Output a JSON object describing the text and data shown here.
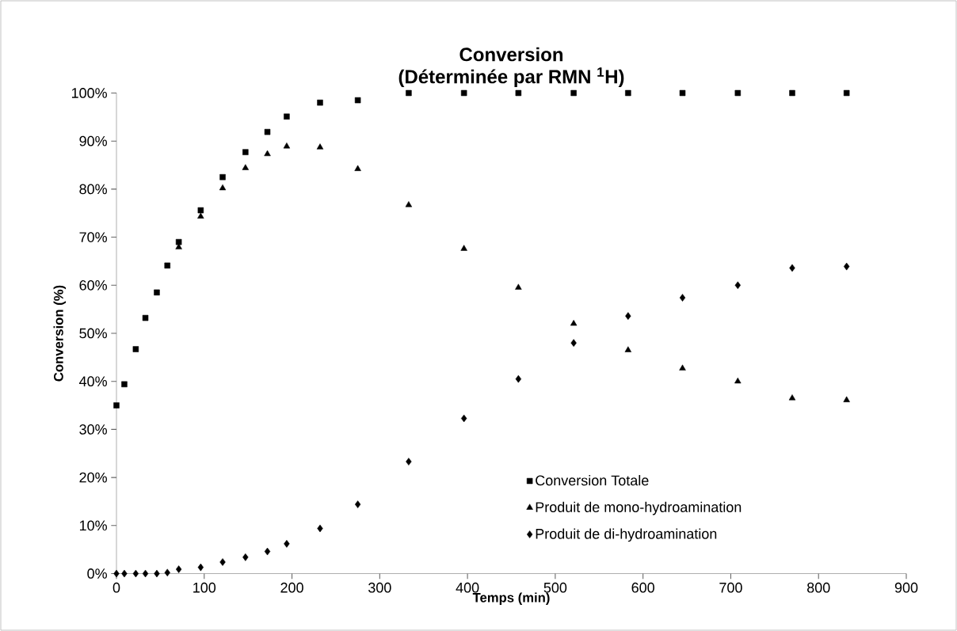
{
  "chart_data": {
    "type": "scatter",
    "title": "Conversion",
    "subtitle": "(Déterminée par RMN $^{1}$H)",
    "xlabel": "Temps (min)",
    "ylabel": "Conversion (%)",
    "x": [
      0,
      9,
      22,
      33,
      46,
      58,
      71,
      96,
      121,
      147,
      172,
      194,
      232,
      275,
      333,
      396,
      458,
      521,
      583,
      645,
      708,
      770,
      832
    ],
    "series": [
      {
        "name": "Conversion Totale",
        "color": "#000000",
        "marker": "square",
        "values": [
          35.0,
          39.4,
          46.7,
          53.2,
          58.5,
          64.1,
          69.0,
          75.6,
          82.5,
          87.7,
          91.9,
          95.1,
          98.0,
          98.5,
          100,
          100,
          100,
          100,
          100,
          100,
          100,
          100,
          100
        ]
      },
      {
        "name": "Produit de mono-hydroamination",
        "color": "#000000",
        "marker": "triangle",
        "values": [
          null,
          null,
          null,
          null,
          null,
          null,
          67.9,
          74.3,
          80.2,
          84.4,
          87.3,
          88.9,
          88.7,
          84.2,
          76.7,
          67.6,
          59.5,
          52.0,
          46.5,
          42.7,
          40.0,
          36.5,
          36.1
        ]
      },
      {
        "name": "Produit de di-hydroamination",
        "color": "#000000",
        "marker": "diamond",
        "values": [
          0,
          0,
          0,
          0,
          0,
          0.2,
          0.9,
          1.3,
          2.4,
          3.4,
          4.6,
          6.2,
          9.4,
          14.4,
          23.3,
          32.3,
          40.5,
          48.0,
          53.6,
          57.4,
          60.0,
          63.6,
          63.9
        ]
      }
    ],
    "xlim": [
      0,
      900
    ],
    "xticks": [
      0,
      100,
      200,
      300,
      400,
      500,
      600,
      700,
      800,
      900
    ],
    "ylim": [
      0,
      100
    ],
    "yticks": [
      {
        "value": 0,
        "label": "0%"
      },
      {
        "value": 10,
        "label": "10%"
      },
      {
        "value": 20,
        "label": "20%"
      },
      {
        "value": 30,
        "label": "30%"
      },
      {
        "value": 40,
        "label": "40%"
      },
      {
        "value": 50,
        "label": "50%"
      },
      {
        "value": 60,
        "label": "60%"
      },
      {
        "value": 70,
        "label": "70%"
      },
      {
        "value": 80,
        "label": "80%"
      },
      {
        "value": 90,
        "label": "90%"
      },
      {
        "value": 100,
        "label": "100%"
      }
    ],
    "grid": false,
    "legend": "bottom right"
  }
}
